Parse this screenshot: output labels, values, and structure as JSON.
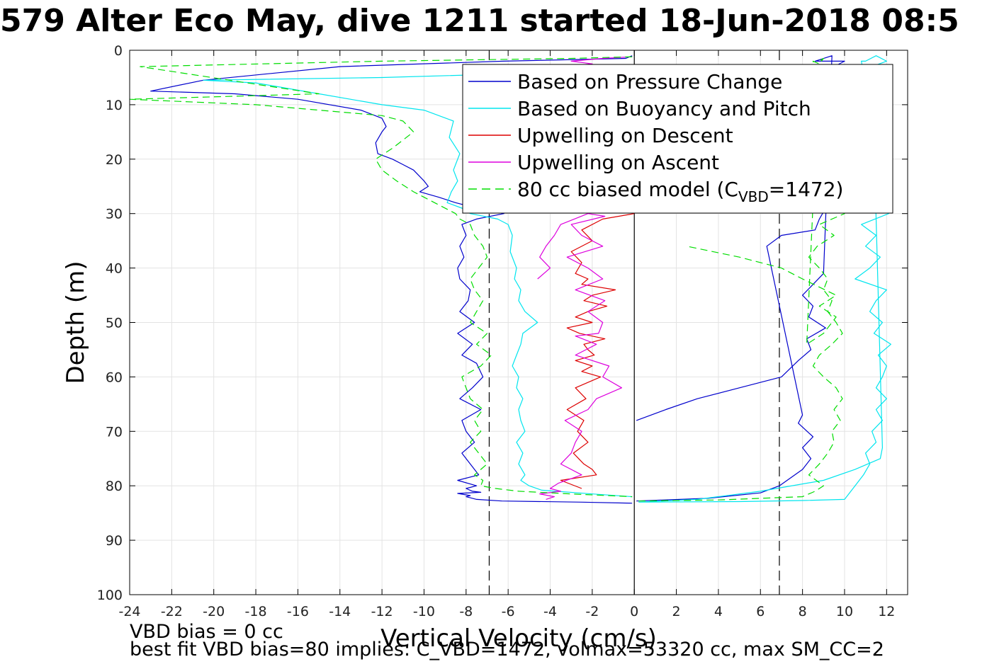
{
  "title": "579 Alter Eco May, dive 1211 started 18-Jun-2018 08:5",
  "notes": {
    "vbd_bias": "VBD bias = 0 cc",
    "best_fit": "best fit VBD bias=80 implies: C_VBD=1472, volmax=53320 cc, max SM_CC=2"
  },
  "chart_data": {
    "type": "line",
    "title": "579 Alter Eco May, dive 1211 started 18-Jun-2018 08:5",
    "xlabel": "Vertical Velocity (cm/s)",
    "ylabel": "Depth (m)",
    "xlim": [
      -24,
      13
    ],
    "ylim": [
      0,
      100
    ],
    "y_reversed": true,
    "grid": true,
    "x_ticks": [
      "-24",
      "-22",
      "-20",
      "-18",
      "-16",
      "-14",
      "-12",
      "-10",
      "-8",
      "-6",
      "-4",
      "-2",
      "0",
      "2",
      "4",
      "6",
      "8",
      "10",
      "12"
    ],
    "y_ticks": [
      "0",
      "10",
      "20",
      "30",
      "40",
      "50",
      "60",
      "70",
      "80",
      "90",
      "100"
    ],
    "legend": {
      "location": "top-right",
      "entries": [
        {
          "label": "Based on Pressure Change",
          "color": "#0000cc",
          "dash": "solid"
        },
        {
          "label": "Based on Buoyancy and Pitch",
          "color": "#00e5ee",
          "dash": "solid"
        },
        {
          "label": "Upwelling on Descent",
          "color": "#dd0000",
          "dash": "solid"
        },
        {
          "label": "Upwelling on Ascent",
          "color": "#dd00dd",
          "dash": "solid"
        },
        {
          "label_prefix": "80 cc biased model (C",
          "label_sub": "VBD",
          "label_suffix": "=1472)",
          "color": "#00dd00",
          "dash": "dashed"
        }
      ]
    },
    "reference_lines": [
      {
        "x": 0,
        "color": "#000000",
        "dash": "solid"
      },
      {
        "x": -6.9,
        "color": "#000000",
        "dash": "dashed"
      },
      {
        "x": 6.9,
        "color": "#000000",
        "dash": "dashed"
      }
    ],
    "series": [
      {
        "name": "Based on Pressure Change",
        "color": "#0000cc",
        "dash": "solid",
        "segments": [
          {
            "x": [
              -0.1,
              -0.4,
              -6.2,
              -14,
              -20.5,
              -23,
              -19,
              -16,
              -13,
              -12,
              -11.8,
              -12,
              -12.3,
              -12.2,
              -11.5,
              -11,
              -10.5,
              -10,
              -9.8,
              -10.2,
              -9.3,
              -8.5,
              -7.5,
              -6.2,
              -7.5,
              -8.2,
              -8,
              -8.3,
              -8.1,
              -8.4,
              -8.3,
              -7.8,
              -7.9,
              -8.3,
              -7.6,
              -8.4,
              -7.7,
              -8.2,
              -7.5,
              -7.2,
              -7.7,
              -8.3,
              -7.3,
              -8.2,
              -8,
              -7.6,
              -8.2,
              -7.8,
              -7.4,
              -8.4,
              -7.5,
              -8,
              -7.7,
              -7.3,
              -8.4,
              -7.8,
              -8.0,
              -7.5,
              -6.3,
              -2.5,
              -0.1
            ],
            "y": [
              1,
              1.5,
              2,
              3,
              5.5,
              7.5,
              8,
              9,
              11,
              12.5,
              14,
              15,
              17,
              19,
              20,
              21,
              22,
              24,
              25,
              26,
              27,
              28,
              29,
              30,
              31,
              32,
              34,
              36,
              38,
              40,
              42,
              44,
              46,
              48,
              50,
              52,
              54,
              56,
              57.5,
              60,
              62,
              64,
              66,
              68,
              70,
              72,
              74,
              76,
              78,
              79,
              80,
              80.5,
              81,
              81.2,
              81.4,
              81.8,
              82,
              82.5,
              82.8,
              83,
              83.2
            ]
          },
          {
            "x": [
              0.1,
              3.5,
              6,
              6.9,
              8,
              8.4,
              8.0,
              8.5,
              7.8,
              8,
              6.3,
              7.0,
              8.6,
              8.8,
              9.1,
              9.0,
              9.4,
              9.2,
              9.5,
              9.7,
              10.0,
              9.6,
              9.0,
              8.5,
              9.3,
              9.7,
              9.3,
              8.8,
              9.5,
              10.0,
              8.9,
              8.6,
              9.4,
              9.0,
              8.5,
              8.0,
              8.5,
              8.3,
              9.1,
              8.2,
              8.4,
              7.8,
              7.0,
              5.0,
              3.0,
              1.5,
              0.1
            ],
            "y": [
              82.8,
              82.3,
              81.3,
              80,
              77,
              75,
              73,
              71,
              68.5,
              67,
              36,
              34,
              33,
              31,
              29,
              27,
              25,
              23,
              21,
              19,
              17,
              15,
              13,
              11,
              9,
              7,
              5,
              4,
              3,
              2,
              2,
              2,
              1,
              41,
              43,
              45,
              47,
              49,
              51,
              53,
              55,
              57,
              60,
              62,
              64,
              66,
              68
            ]
          }
        ]
      },
      {
        "name": "Based on Buoyancy and Pitch",
        "color": "#00e5ee",
        "dash": "solid",
        "segments": [
          {
            "x": [
              -0.1,
              -3,
              -12,
              -20.5,
              -18,
              -15,
              -12,
              -10,
              -8.6,
              -8.8,
              -8.3,
              -8.6,
              -8.4,
              -8.7,
              -8.9,
              -8.2,
              -7.8,
              -6.5,
              -6,
              -5.8,
              -5.9,
              -5.6,
              -5.7,
              -5.4,
              -5.5,
              -5.2,
              -4.6,
              -5.3,
              -5.4,
              -5.6,
              -5.8,
              -5.5,
              -5.6,
              -5.3,
              -5.5,
              -5.4,
              -5.2,
              -5.6,
              -5.3,
              -5.5,
              -5.2,
              -5.4,
              -5.0,
              -4.4,
              -2.0,
              -0.1
            ],
            "y": [
              3,
              4,
              5,
              5.5,
              6,
              8,
              10,
              11,
              13,
              16,
              19,
              22,
              24,
              26,
              28,
              29,
              30,
              31,
              32,
              34,
              37,
              40,
              42,
              44,
              46,
              48,
              50,
              52,
              54,
              56,
              58,
              60,
              62,
              64,
              66,
              68,
              70,
              72,
              74,
              76,
              78,
              79,
              80,
              80.8,
              81.5,
              82
            ]
          },
          {
            "x": [
              0.2,
              5,
              8,
              10.0,
              10.5,
              10.9,
              11.2,
              11.0,
              11.5,
              11.3,
              11.8,
              11.5,
              12.0,
              11.5,
              11.8,
              12.0,
              11.6,
              12.2,
              11.4,
              11.8,
              11.2,
              11.5,
              12.0,
              10.5,
              11.2,
              11.7,
              11.0,
              11.5,
              10.8,
              12.1,
              10.8,
              11.0,
              11.5,
              12.0,
              11.3,
              11.8,
              11.7,
              10.5,
              9.0,
              6.0,
              3.0,
              0.2
            ],
            "y": [
              83,
              82.9,
              82.7,
              82.5,
              80,
              78,
              76,
              74,
              72,
              70,
              68,
              66,
              64,
              62,
              60,
              58,
              56,
              54,
              52,
              50,
              48,
              46,
              44,
              42,
              40,
              38,
              36,
              34,
              32,
              30,
              2,
              2,
              1,
              2,
              3,
              73,
              75,
              77,
              79,
              81,
              82.5,
              83
            ]
          }
        ]
      },
      {
        "name": "Upwelling on Descent",
        "color": "#dd0000",
        "dash": "solid",
        "segments": [
          {
            "x": [
              0,
              -1.5,
              -2.5,
              -2.0,
              -3.0,
              -2.5,
              -2.8,
              -2.2,
              -2.5,
              -0.9,
              -2.0,
              -2.4,
              -1.3,
              -2.2,
              -2.8,
              -2.0,
              -3.2,
              -2.6,
              -1.4,
              -2.4,
              -2.2,
              -1.9,
              -2.8,
              -2.0,
              -2.5,
              -1.6,
              -2.8,
              -2.3,
              -3.2,
              -2.4,
              -2.7,
              -2.2,
              -2.9,
              -2.4,
              -2.0,
              -1.8,
              -3.5,
              -2.5
            ],
            "y": [
              30,
              31,
              33,
              35,
              37,
              39,
              41,
              42,
              43,
              44,
              45,
              46,
              47,
              48,
              49,
              50,
              51,
              52,
              53,
              54,
              55,
              56,
              57,
              58,
              59,
              60,
              62,
              64,
              66,
              68,
              70,
              72,
              74,
              76,
              77,
              78,
              79,
              80.5
            ]
          }
        ]
      },
      {
        "name": "Upwelling on Ascent",
        "color": "#dd00dd",
        "dash": "solid",
        "segments": [
          {
            "x": [
              -4.2,
              -3.8,
              -4.5,
              -3.5,
              -4.0,
              -3.6,
              -2.5,
              -3.5,
              -3.0,
              -2.8,
              -2.5,
              -3.3,
              -2.2,
              -1.8,
              -0.6,
              -1.5,
              -1.2,
              -2.8,
              -1.8,
              -2.8,
              -1.7,
              -1.5,
              -2.2,
              -1.4,
              -2.8,
              -1.5,
              -2.2,
              -3.2,
              -1.5,
              -2.5,
              -3.0,
              -1.4,
              -2.2,
              -3.5,
              -3.8,
              -4.2,
              -4.5,
              -4.0,
              -4.6
            ],
            "y": [
              82.5,
              82,
              81.5,
              81,
              80.5,
              79.5,
              78,
              76,
              74,
              72,
              70,
              68,
              66,
              64,
              62,
              60,
              58,
              56,
              54,
              52.5,
              52,
              50,
              48,
              46,
              44,
              42,
              40,
              38,
              36,
              34,
              32,
              30.5,
              30,
              32,
              34,
              36,
              38,
              40,
              42
            ]
          },
          {
            "x": [
              -0.1,
              -1.5,
              -3.0,
              -2.0,
              -3.5,
              -2.2,
              -0.3,
              -2.0,
              -1.0,
              -0.1
            ],
            "y": [
              1.2,
              1.5,
              2,
              2.5,
              3,
              3.5,
              4,
              4.5,
              5,
              5.5
            ]
          }
        ]
      },
      {
        "name": "80 cc biased model (CVBD=1472)",
        "color": "#00dd00",
        "dash": "dashed",
        "segments": [
          {
            "x": [
              -0.1,
              -3,
              -12,
              -23.5,
              -15,
              -24,
              -18,
              -15,
              -12,
              -11,
              -10.5,
              -11.5,
              -12.3,
              -12.0,
              -11.3,
              -10.5,
              -9.5,
              -8.5,
              -8.3,
              -7.8,
              -7.6,
              -7.2,
              -7.0,
              -7.4,
              -7.8,
              -7.6,
              -7.2,
              -7.5,
              -7.8,
              -7.0,
              -7.5,
              -6.8,
              -7.3,
              -8.2,
              -8.0,
              -7.8,
              -7.2,
              -7.6,
              -7.3,
              -7.8,
              -7.4,
              -7.0,
              -7.6,
              -7.2,
              -7.3,
              -6.6,
              -5.5,
              -3.0,
              -0.1
            ],
            "y": [
              1.2,
              1.5,
              2,
              3,
              8,
              9,
              10,
              11,
              12,
              13,
              15,
              18,
              20,
              22,
              24,
              26,
              28,
              30,
              31,
              32,
              34,
              36,
              38,
              40,
              42,
              44,
              46,
              48,
              50,
              52,
              54,
              56,
              58,
              60,
              62,
              64,
              66,
              68,
              70,
              72,
              74,
              76,
              78,
              79,
              80,
              80.5,
              81,
              81.5,
              82
            ]
          },
          {
            "x": [
              0.2,
              4,
              8,
              8.6,
              9.0,
              8.3,
              8.8,
              9.2,
              9.5,
              9.4,
              9.8,
              9.5,
              9.9,
              9.6,
              9.0,
              8.5,
              8.8,
              9.4,
              9.9,
              9.6,
              9.2,
              9.4,
              9.0,
              9.2,
              8.8,
              8.3,
              8.7,
              9.5,
              8.8,
              10.0,
              8.5,
              8.8,
              9.0,
              8.8,
              8.2,
              9.0,
              9.6,
              8.8,
              9.6,
              8.0,
              7.0,
              5.0,
              2.5
            ],
            "y": [
              82.8,
              82.6,
              82,
              81,
              80,
              78,
              76,
              74,
              72,
              70,
              68,
              66,
              64,
              62,
              60,
              58,
              56,
              54,
              52,
              50,
              48,
              46,
              44,
              42,
              40,
              38,
              36,
              34,
              32,
              30,
              2,
              2.5,
              1.5,
              2,
              54,
              52,
              49,
              47,
              45,
              42,
              40,
              38,
              36
            ]
          }
        ]
      }
    ]
  }
}
